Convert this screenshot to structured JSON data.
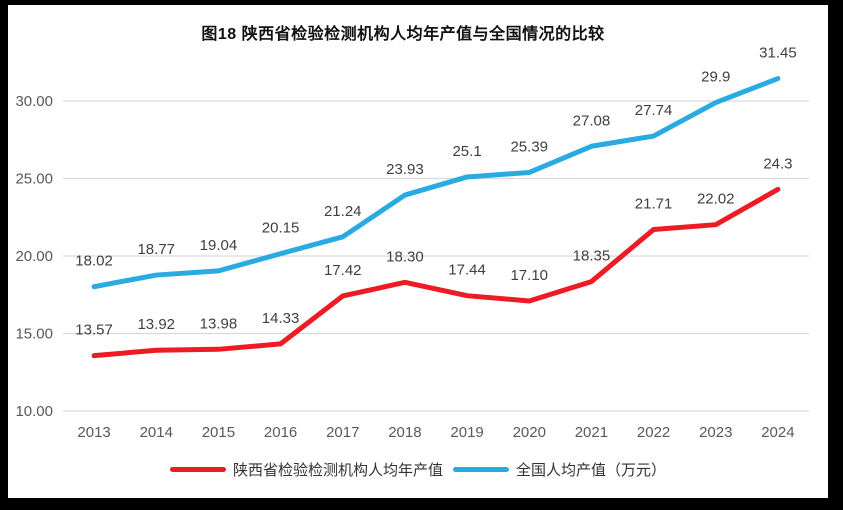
{
  "title": "图18 陕西省检验检测机构人均年产值与全国情况的比较",
  "colors": {
    "shaanxi_series": "#ed1c24",
    "national_series": "#29abe2",
    "gridline": "#d9d9d9",
    "data_label": "#3f3f3f",
    "axis_label": "#595959",
    "frame": "#000000",
    "background": "#ffffff"
  },
  "chart_data": {
    "type": "line",
    "title": "图18 陕西省检验检测机构人均年产值与全国情况的比较",
    "categories": [
      "2013",
      "2014",
      "2015",
      "2016",
      "2017",
      "2018",
      "2019",
      "2020",
      "2021",
      "2022",
      "2023",
      "2024"
    ],
    "series": [
      {
        "name": "陕西省检验检测机构人均年产值",
        "color": "#ed1c24",
        "values": [
          13.57,
          13.92,
          13.98,
          14.33,
          17.42,
          18.3,
          17.44,
          17.1,
          18.35,
          21.71,
          22.02,
          24.3
        ],
        "labels": [
          "13.57",
          "13.92",
          "13.98",
          "14.33",
          "17.42",
          "18.30",
          "17.44",
          "17.10",
          "18.35",
          "21.71",
          "22.02",
          "24.3"
        ]
      },
      {
        "name": "全国人均产值（万元）",
        "color": "#29abe2",
        "values": [
          18.02,
          18.77,
          19.04,
          20.15,
          21.24,
          23.93,
          25.1,
          25.39,
          27.08,
          27.74,
          29.9,
          31.45
        ],
        "labels": [
          "18.02",
          "18.77",
          "19.04",
          "20.15",
          "21.24",
          "23.93",
          "25.1",
          "25.39",
          "27.08",
          "27.74",
          "29.9",
          "31.45"
        ]
      }
    ],
    "y_ticks": [
      "10.00",
      "15.00",
      "20.00",
      "25.00",
      "30.00"
    ],
    "ylim": [
      10,
      32.6
    ],
    "xlabel": "",
    "ylabel": "",
    "grid": "horizontal",
    "legend_position": "bottom"
  }
}
